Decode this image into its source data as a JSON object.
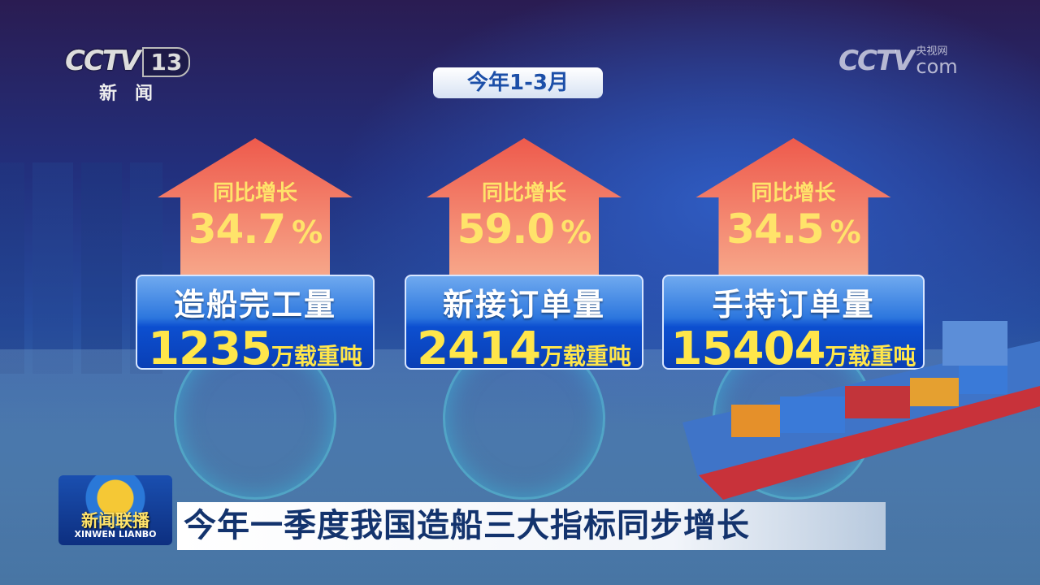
{
  "logo": {
    "channel": "CCTV",
    "number": "13",
    "subtitle": "新闻"
  },
  "watermark": {
    "brand": "CCTV",
    "cn": "央视网",
    "domain": "com"
  },
  "period": "今年1-3月",
  "cards": [
    {
      "yoy_label": "同比增长",
      "growth": "34.7",
      "percent": "%",
      "name": "造船完工量",
      "value": "1235",
      "unit": "万载重吨"
    },
    {
      "yoy_label": "同比增长",
      "growth": "59.0",
      "percent": "%",
      "name": "新接订单量",
      "value": "2414",
      "unit": "万载重吨"
    },
    {
      "yoy_label": "同比增长",
      "growth": "34.5",
      "percent": "%",
      "name": "手持订单量",
      "value": "15404",
      "unit": "万载重吨"
    }
  ],
  "program": {
    "name_cn": "新闻联播",
    "name_en": "XINWEN  LIANBO"
  },
  "headline": "今年一季度我国造船三大指标同步增长",
  "colors": {
    "arrow": "#f0705a",
    "number": "#ffe64a",
    "box": "#1a5fd6",
    "headline": "#13336d"
  }
}
